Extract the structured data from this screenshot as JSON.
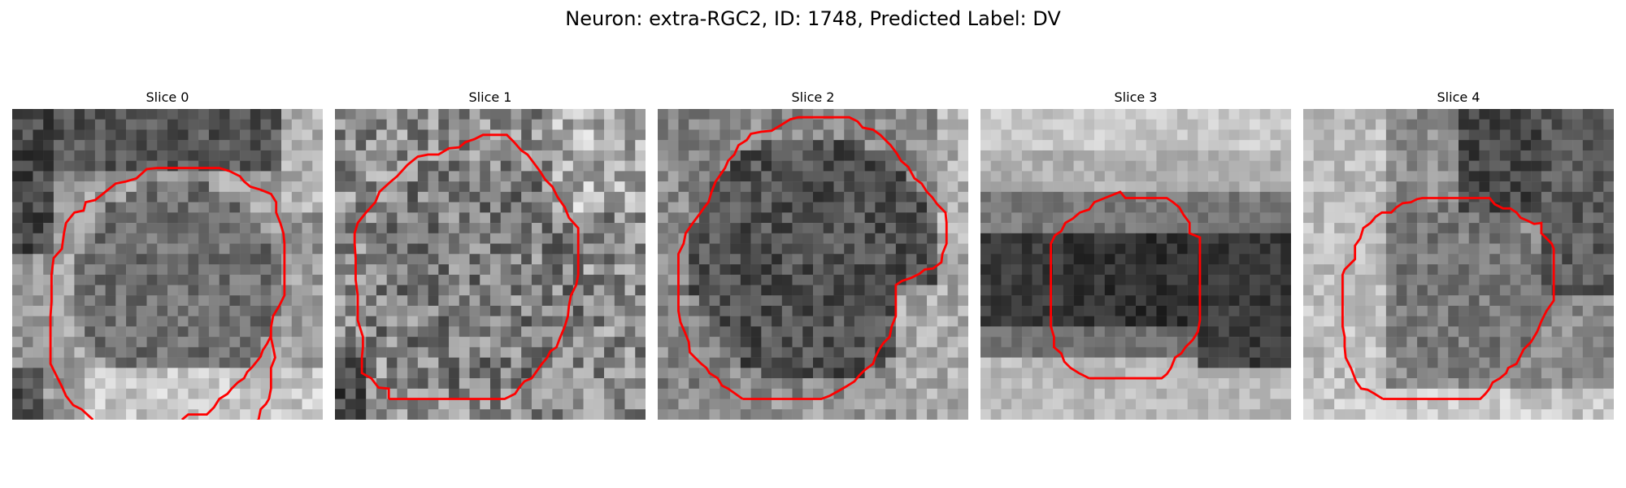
{
  "title": "Neuron: extra-RGC2, ID: 1748, Predicted Label: DV",
  "contour_color": "#ff0000",
  "panels": [
    {
      "label": "Slice 0",
      "seed": 11
    },
    {
      "label": "Slice 1",
      "seed": 23
    },
    {
      "label": "Slice 2",
      "seed": 37
    },
    {
      "label": "Slice 3",
      "seed": 41
    },
    {
      "label": "Slice 4",
      "seed": 53
    }
  ]
}
